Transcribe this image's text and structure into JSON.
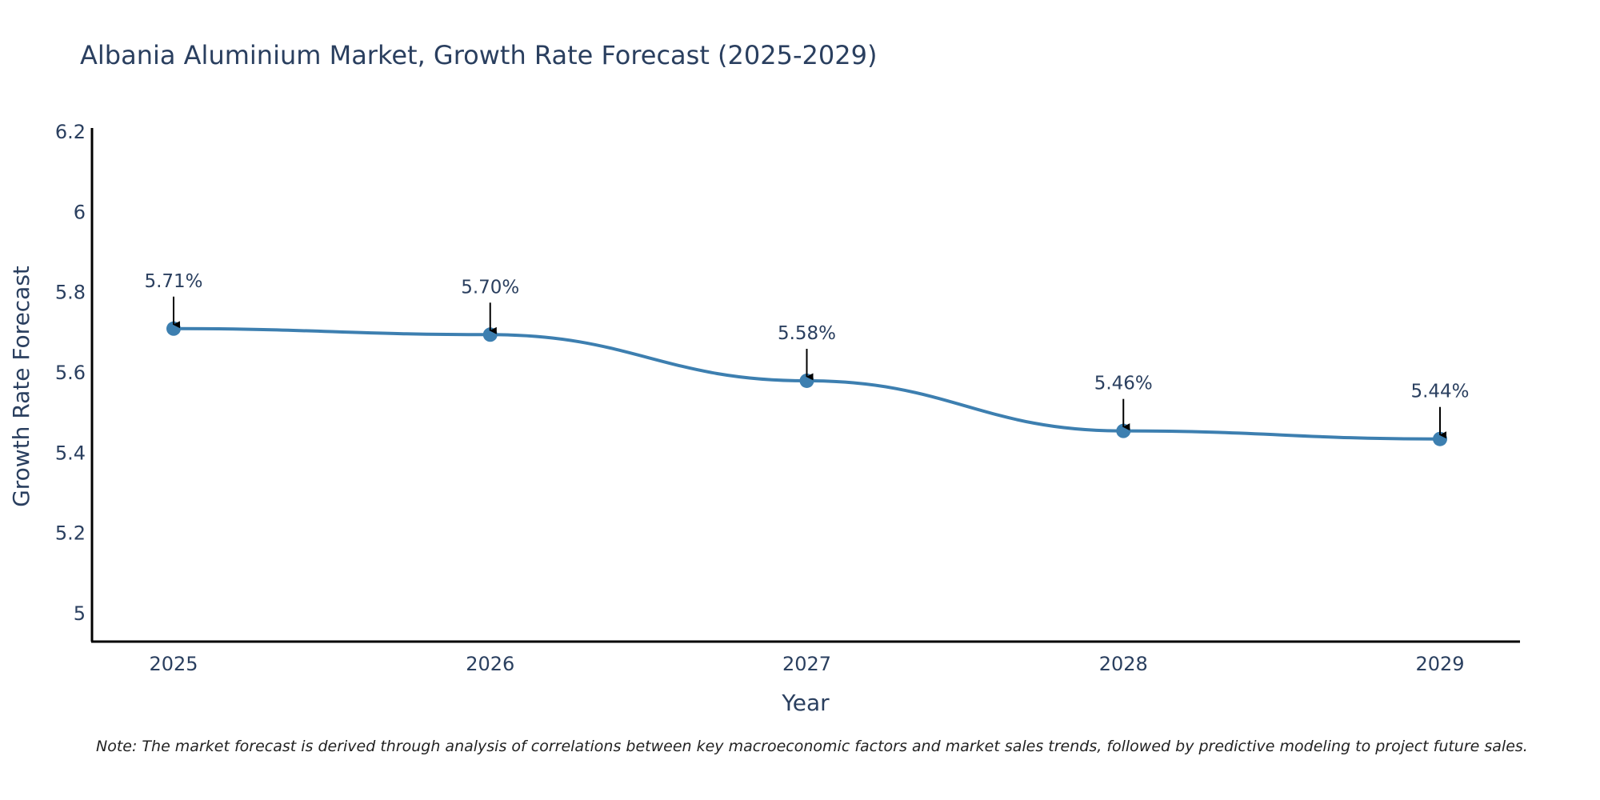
{
  "chart_data": {
    "type": "line",
    "title": "Albania Aluminium Market, Growth Rate Forecast (2025-2029)",
    "xlabel": "Year",
    "ylabel": "Growth Rate Forecast",
    "x": [
      "2025",
      "2026",
      "2027",
      "2028",
      "2029"
    ],
    "series": [
      {
        "name": "Growth Rate Forecast",
        "values": [
          5.71,
          5.695,
          5.58,
          5.455,
          5.435
        ]
      }
    ],
    "annotations": [
      "5.71%",
      "5.70%",
      "5.58%",
      "5.46%",
      "5.44%"
    ],
    "yticks": [
      "5",
      "5.2",
      "5.4",
      "5.6",
      "5.8",
      "6",
      "6.2"
    ],
    "ylim": [
      4.93,
      6.21
    ],
    "grid": false,
    "legend": "none",
    "line_color": "#3d7fb0",
    "marker_color": "#3d7fb0",
    "arrow_color": "#000000"
  },
  "note": "Note: The market forecast is derived through analysis of correlations between key macroeconomic factors and market sales trends, followed by predictive modeling to project future sales."
}
